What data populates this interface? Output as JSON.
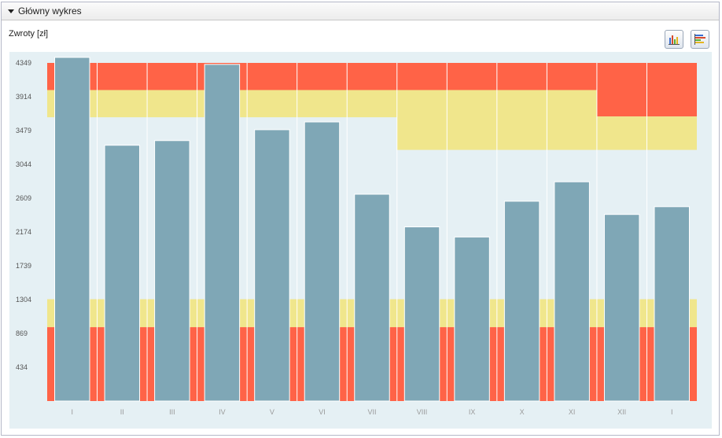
{
  "panel": {
    "title": "Główny wykres"
  },
  "toolbar": {
    "vertical_bars_icon": "vertical-bar-chart-icon",
    "horizontal_bars_icon": "horizontal-bar-chart-icon"
  },
  "chart_data": {
    "type": "bar",
    "title": "Zwroty [zł]",
    "xlabel": "",
    "ylabel": "",
    "categories": [
      "I",
      "II",
      "III",
      "IV",
      "V",
      "VI",
      "VII",
      "VIII",
      "IX",
      "X",
      "XI",
      "XII",
      "I"
    ],
    "values": [
      4420,
      3290,
      3350,
      4330,
      3490,
      3590,
      2660,
      2240,
      2110,
      2570,
      2820,
      2400,
      2500
    ],
    "yticks": [
      434,
      869,
      1304,
      1739,
      2174,
      2609,
      3044,
      3479,
      3914,
      4349
    ],
    "ylim": [
      0,
      4349
    ],
    "grid": true,
    "legend": "none",
    "bands": [
      {
        "upper_red_from": 4000,
        "yellow_from": 3650,
        "lower_yellow_to": 1310,
        "lower_red_to": 950
      },
      {
        "upper_red_from": 4000,
        "yellow_from": 3650,
        "lower_yellow_to": 1310,
        "lower_red_to": 950
      },
      {
        "upper_red_from": 4000,
        "yellow_from": 3650,
        "lower_yellow_to": 1310,
        "lower_red_to": 950
      },
      {
        "upper_red_from": 4000,
        "yellow_from": 3650,
        "lower_yellow_to": 1310,
        "lower_red_to": 950
      },
      {
        "upper_red_from": 4000,
        "yellow_from": 3650,
        "lower_yellow_to": 1310,
        "lower_red_to": 950
      },
      {
        "upper_red_from": 4000,
        "yellow_from": 3650,
        "lower_yellow_to": 1310,
        "lower_red_to": 950
      },
      {
        "upper_red_from": 4000,
        "yellow_from": 3650,
        "lower_yellow_to": 1310,
        "lower_red_to": 950
      },
      {
        "upper_red_from": 4000,
        "yellow_from": 3230,
        "lower_yellow_to": 1310,
        "lower_red_to": 950
      },
      {
        "upper_red_from": 4000,
        "yellow_from": 3230,
        "lower_yellow_to": 1310,
        "lower_red_to": 950
      },
      {
        "upper_red_from": 4000,
        "yellow_from": 3230,
        "lower_yellow_to": 1310,
        "lower_red_to": 950
      },
      {
        "upper_red_from": 4000,
        "yellow_from": 3230,
        "lower_yellow_to": 1310,
        "lower_red_to": 950
      },
      {
        "upper_red_from": 3660,
        "yellow_from": 3230,
        "lower_yellow_to": 1310,
        "lower_red_to": 950
      },
      {
        "upper_red_from": 3660,
        "yellow_from": 3230,
        "lower_yellow_to": 1310,
        "lower_red_to": 950
      }
    ],
    "colors": {
      "background": "#e5f0f4",
      "bar": "#7fa7b6",
      "red": "#ff6347",
      "yellow": "#f0e68c",
      "axis_text": "#555555",
      "xtick_text": "#999999"
    }
  }
}
